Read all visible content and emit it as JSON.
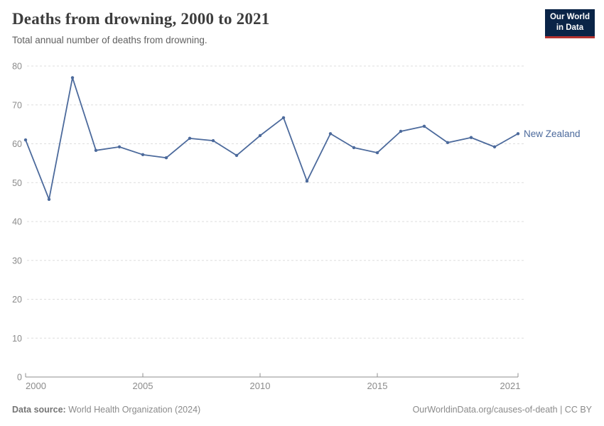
{
  "header": {
    "title": "Deaths from drowning, 2000 to 2021",
    "subtitle": "Total annual number of deaths from drowning.",
    "logo": {
      "line1": "Our World",
      "line2": "in Data"
    }
  },
  "colors": {
    "line": "#4c6a9c",
    "entity_label": "#4c6a9c",
    "grid": "#dedede",
    "axis": "#8f8f8f",
    "tick_text": "#8b8b8b",
    "logo_bg": "#0a2447",
    "logo_accent": "#b5322f"
  },
  "chart_data": {
    "type": "line",
    "title": "Deaths from drowning, 2000 to 2021",
    "subtitle": "Total annual number of deaths from drowning.",
    "xlabel": "",
    "ylabel": "",
    "ylim": [
      0,
      80
    ],
    "yticks": [
      0,
      10,
      20,
      30,
      40,
      50,
      60,
      70,
      80
    ],
    "xticks": [
      2000,
      2005,
      2010,
      2015,
      2021
    ],
    "grid": "horizontal-dashed",
    "legend_position": "end-of-line",
    "series": [
      {
        "name": "New Zealand",
        "x": [
          2000,
          2001,
          2002,
          2003,
          2004,
          2005,
          2006,
          2007,
          2008,
          2009,
          2010,
          2011,
          2012,
          2013,
          2014,
          2015,
          2016,
          2017,
          2018,
          2019,
          2020,
          2021
        ],
        "values": [
          61,
          45.7,
          77,
          58.3,
          59.2,
          57.2,
          56.4,
          61.4,
          60.8,
          57,
          62.1,
          66.7,
          50.4,
          62.6,
          59,
          57.7,
          63.2,
          64.5,
          60.3,
          61.6,
          59.2,
          62.6
        ]
      }
    ]
  },
  "footer": {
    "source_label": "Data source:",
    "source_text": "World Health Organization (2024)",
    "link_text": "OurWorldinData.org/causes-of-death | CC BY"
  }
}
